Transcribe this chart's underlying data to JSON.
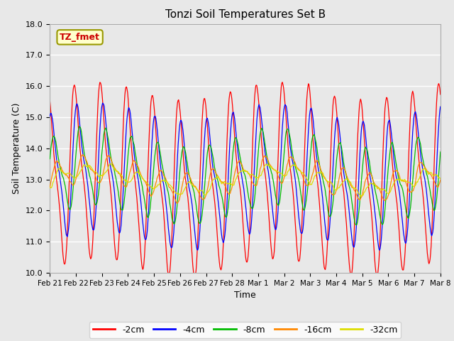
{
  "title": "Tonzi Soil Temperatures Set B",
  "xlabel": "Time",
  "ylabel": "Soil Temperature (C)",
  "ylim": [
    10.0,
    18.0
  ],
  "yticks": [
    10.0,
    11.0,
    12.0,
    13.0,
    14.0,
    15.0,
    16.0,
    17.0,
    18.0
  ],
  "xtick_labels": [
    "Feb 21",
    "Feb 22",
    "Feb 23",
    "Feb 24",
    "Feb 25",
    "Feb 26",
    "Feb 27",
    "Feb 28",
    "Mar 1",
    "Mar 2",
    "Mar 3",
    "Mar 4",
    "Mar 5",
    "Mar 6",
    "Mar 7",
    "Mar 8"
  ],
  "bg_color": "#e8e8e8",
  "grid_color": "#ffffff",
  "series_colors": [
    "#ff0000",
    "#0000ff",
    "#00bb00",
    "#ff8800",
    "#dddd00"
  ],
  "series_labels": [
    "-2cm",
    "-4cm",
    "-8cm",
    "-16cm",
    "-32cm"
  ],
  "legend_label": "TZ_fmet",
  "legend_facecolor": "#ffffcc",
  "legend_edgecolor": "#999900",
  "figsize": [
    6.4,
    4.8
  ],
  "dpi": 100
}
